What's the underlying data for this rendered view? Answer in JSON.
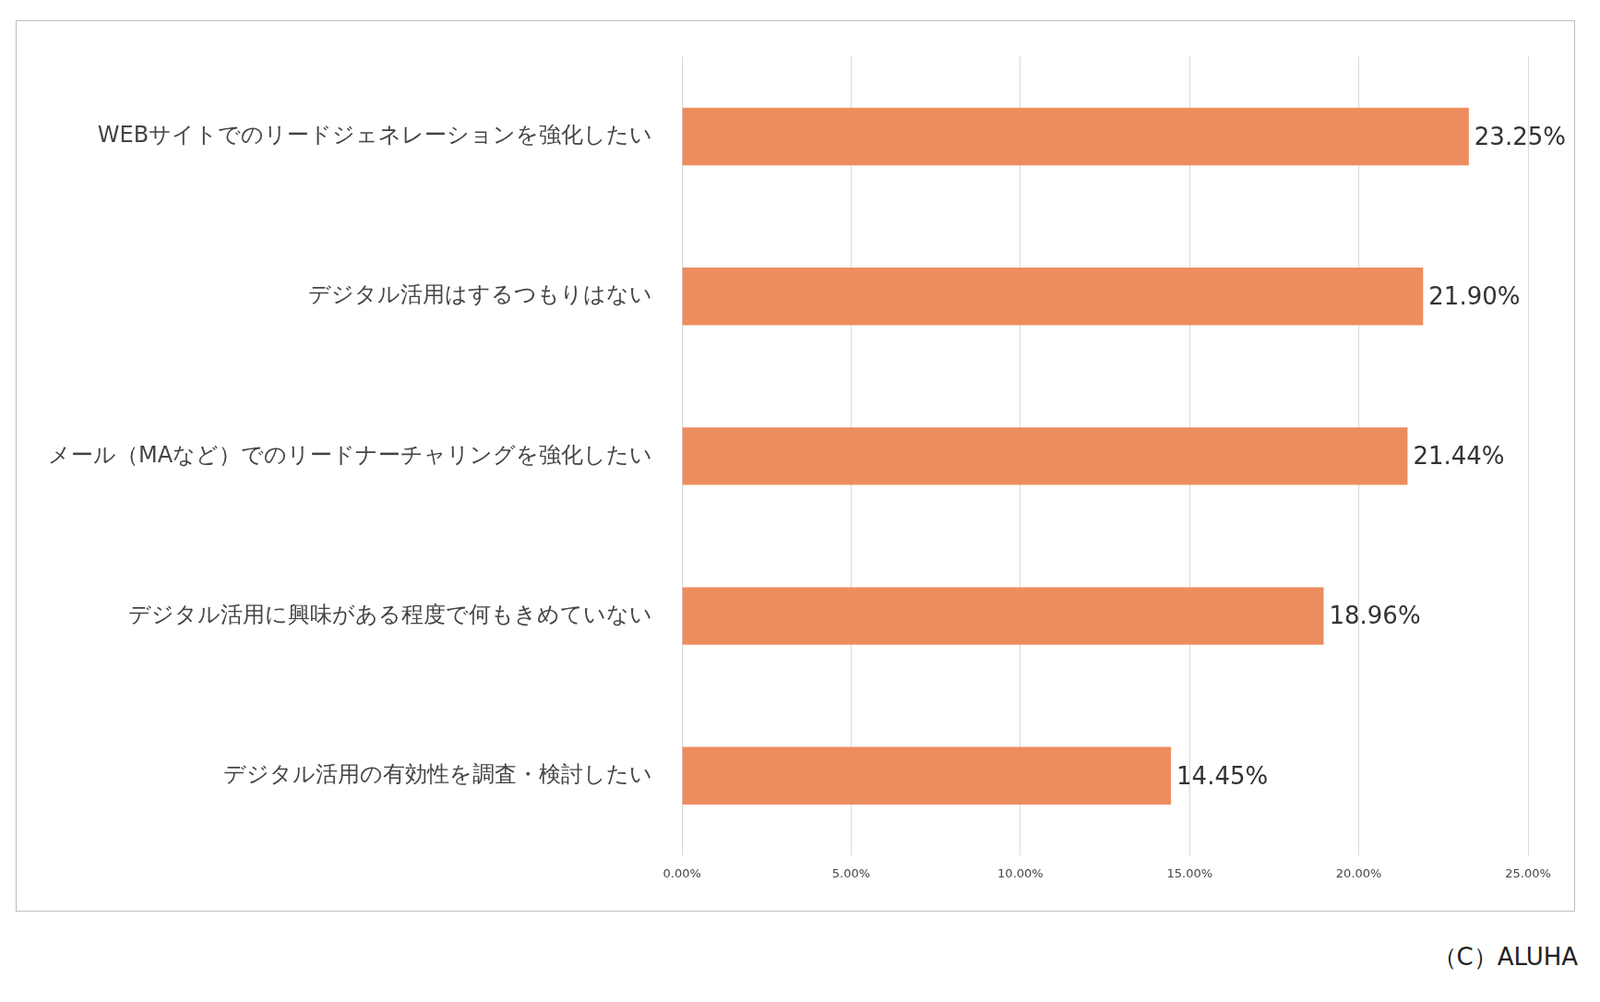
{
  "chart_data": {
    "type": "bar",
    "orientation": "horizontal",
    "categories": [
      "WEBサイトでのリードジェネレーションを強化したい",
      "デジタル活用はするつもりはない",
      "メール（MAなど）でのリードナーチャリングを強化したい",
      "デジタル活用に興味がある程度で何もきめていない",
      "デジタル活用の有効性を調査・検討したい"
    ],
    "values": [
      23.25,
      21.9,
      21.44,
      18.96,
      14.45
    ],
    "value_labels": [
      "23.25%",
      "21.90%",
      "21.44%",
      "18.96%",
      "14.45%"
    ],
    "data_labels": true,
    "color": "#ed8d5e",
    "xlim": [
      0,
      25
    ],
    "xticks": [
      {
        "value": 0,
        "label": "0.00%"
      },
      {
        "value": 5,
        "label": "5.00%"
      },
      {
        "value": 10,
        "label": "10.00%"
      },
      {
        "value": 15,
        "label": "15.00%"
      },
      {
        "value": 20,
        "label": "20.00%"
      },
      {
        "value": 25,
        "label": "25.00%"
      }
    ],
    "grid": true,
    "annotations": [
      "（C）ALUHA"
    ]
  }
}
